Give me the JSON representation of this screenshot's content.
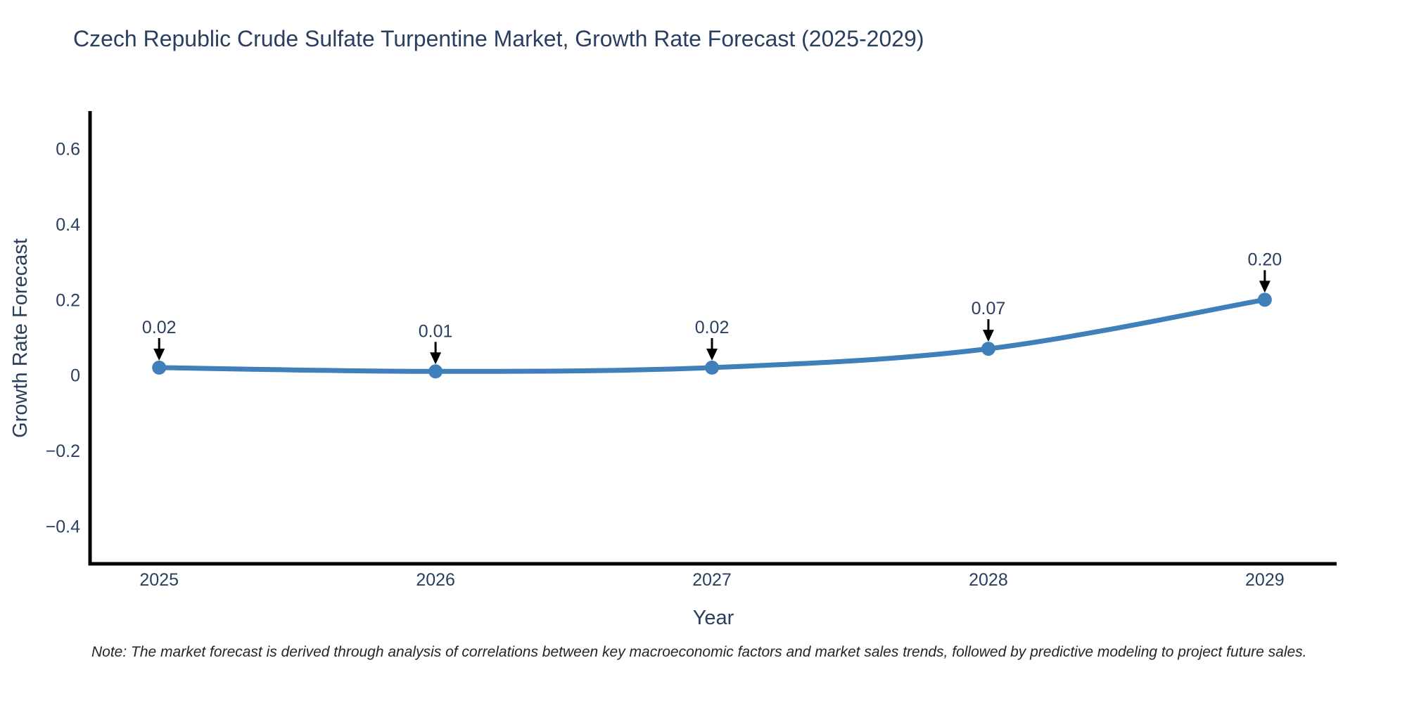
{
  "title": "Czech Republic Crude Sulfate Turpentine Market, Growth Rate Forecast (2025-2029)",
  "note": "Note: The market forecast is derived through analysis of correlations between key macroeconomic factors and market sales trends, followed by predictive modeling to project future sales.",
  "chart_data": {
    "type": "line",
    "title": "Czech Republic Crude Sulfate Turpentine Market, Growth Rate Forecast (2025-2029)",
    "xlabel": "Year",
    "ylabel": "Growth Rate Forecast",
    "x": [
      2025,
      2026,
      2027,
      2028,
      2029
    ],
    "values": [
      0.02,
      0.01,
      0.02,
      0.07,
      0.2
    ],
    "point_labels": [
      "0.02",
      "0.01",
      "0.02",
      "0.07",
      "0.20"
    ],
    "xtick_labels": [
      "2025",
      "2026",
      "2027",
      "2028",
      "2029"
    ],
    "ytick_values": [
      0.6,
      0.4,
      0.2,
      0,
      -0.2,
      -0.4
    ],
    "ytick_labels": [
      "0.6",
      "0.4",
      "0.2",
      "0",
      "−0.2",
      "−0.4"
    ],
    "xlim": [
      2024.75,
      2029.26
    ],
    "ylim": [
      -0.5,
      0.7
    ],
    "grid": false,
    "legend": "none",
    "line_shape": "spline",
    "marker": "circle",
    "colors": {
      "line": "#3f7fba",
      "marker": "#3f7fba",
      "axis": "#000000",
      "arrow": "#000000",
      "text": "#2a3f5f"
    }
  }
}
